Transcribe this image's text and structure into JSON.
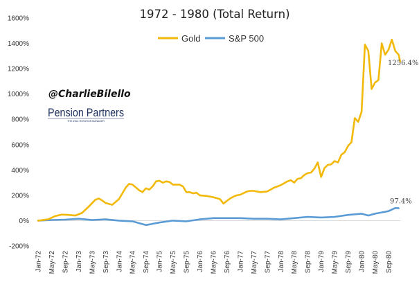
{
  "chart_data": {
    "type": "line",
    "title": "1972 - 1980 (Total Return)",
    "xlabel": "",
    "ylabel": "",
    "ylim": [
      -200,
      1600
    ],
    "y_ticks": [
      "-200%",
      "0%",
      "200%",
      "400%",
      "600%",
      "800%",
      "1000%",
      "1200%",
      "1400%",
      "1600%"
    ],
    "x_tick_labels": [
      "Jan-72",
      "May-72",
      "Sep-72",
      "Jan-73",
      "May-73",
      "Sep-73",
      "Jan-74",
      "May-74",
      "Sep-74",
      "Jan-75",
      "May-75",
      "Sep-75",
      "Jan-76",
      "May-76",
      "Sep-76",
      "Jan-77",
      "May-77",
      "Sep-77",
      "Jan-78",
      "May-78",
      "Sep-78",
      "Jan-79",
      "May-79",
      "Sep-79",
      "Jan-80",
      "May-80",
      "Sep-80"
    ],
    "x_range_months": [
      "Jan-72",
      "Dec-80"
    ],
    "grid": false,
    "legend_position": "top-center",
    "series": [
      {
        "name": "Gold",
        "color": "#f2b90a",
        "end_label": "1256.4%",
        "points": [
          [
            "Jan-72",
            0
          ],
          [
            "Apr-72",
            10
          ],
          [
            "Jun-72",
            35
          ],
          [
            "Aug-72",
            48
          ],
          [
            "Oct-72",
            45
          ],
          [
            "Dec-72",
            40
          ],
          [
            "Feb-73",
            60
          ],
          [
            "Apr-73",
            110
          ],
          [
            "Jun-73",
            165
          ],
          [
            "Jul-73",
            175
          ],
          [
            "Aug-73",
            160
          ],
          [
            "Sep-73",
            140
          ],
          [
            "Nov-73",
            125
          ],
          [
            "Jan-74",
            170
          ],
          [
            "Mar-74",
            260
          ],
          [
            "Apr-74",
            290
          ],
          [
            "May-74",
            285
          ],
          [
            "Jul-74",
            240
          ],
          [
            "Aug-74",
            225
          ],
          [
            "Sep-74",
            255
          ],
          [
            "Oct-74",
            245
          ],
          [
            "Nov-74",
            270
          ],
          [
            "Dec-74",
            310
          ],
          [
            "Jan-75",
            315
          ],
          [
            "Feb-75",
            300
          ],
          [
            "Mar-75",
            310
          ],
          [
            "Apr-75",
            305
          ],
          [
            "May-75",
            285
          ],
          [
            "Jul-75",
            285
          ],
          [
            "Aug-75",
            270
          ],
          [
            "Sep-75",
            225
          ],
          [
            "Oct-75",
            225
          ],
          [
            "Nov-75",
            215
          ],
          [
            "Dec-75",
            220
          ],
          [
            "Jan-76",
            200
          ],
          [
            "Mar-76",
            195
          ],
          [
            "May-76",
            185
          ],
          [
            "Jul-76",
            170
          ],
          [
            "Aug-76",
            135
          ],
          [
            "Sep-76",
            155
          ],
          [
            "Oct-76",
            175
          ],
          [
            "Nov-76",
            190
          ],
          [
            "Dec-76",
            200
          ],
          [
            "Jan-77",
            205
          ],
          [
            "Mar-77",
            230
          ],
          [
            "Apr-77",
            235
          ],
          [
            "May-77",
            235
          ],
          [
            "Jul-77",
            225
          ],
          [
            "Sep-77",
            230
          ],
          [
            "Oct-77",
            245
          ],
          [
            "Nov-77",
            260
          ],
          [
            "Dec-77",
            270
          ],
          [
            "Jan-78",
            280
          ],
          [
            "Mar-78",
            310
          ],
          [
            "Apr-78",
            320
          ],
          [
            "May-78",
            300
          ],
          [
            "Jun-78",
            330
          ],
          [
            "Jul-78",
            335
          ],
          [
            "Aug-78",
            360
          ],
          [
            "Sep-78",
            375
          ],
          [
            "Oct-78",
            380
          ],
          [
            "Nov-78",
            410
          ],
          [
            "Dec-78",
            460
          ],
          [
            "Jan-79",
            345
          ],
          [
            "Feb-79",
            415
          ],
          [
            "Mar-79",
            440
          ],
          [
            "Apr-79",
            445
          ],
          [
            "May-79",
            470
          ],
          [
            "Jun-79",
            460
          ],
          [
            "Jul-79",
            520
          ],
          [
            "Aug-79",
            540
          ],
          [
            "Sep-79",
            590
          ],
          [
            "Oct-79",
            620
          ],
          [
            "Nov-79",
            810
          ],
          [
            "Dec-79",
            780
          ],
          [
            "Jan-80",
            860
          ],
          [
            "Feb-80",
            1390
          ],
          [
            "Mar-80",
            1340
          ],
          [
            "Apr-80",
            1040
          ],
          [
            "May-80",
            1090
          ],
          [
            "Jun-80",
            1110
          ],
          [
            "Jul-80",
            1400
          ],
          [
            "Aug-80",
            1310
          ],
          [
            "Sep-80",
            1350
          ],
          [
            "Oct-80",
            1430
          ],
          [
            "Nov-80",
            1340
          ],
          [
            "Dec-80",
            1310
          ],
          [
            "Dec-80",
            1256.4
          ]
        ]
      },
      {
        "name": "S&P 500",
        "color": "#5b9bd5",
        "end_label": "97.4%",
        "points": [
          [
            "Jan-72",
            0
          ],
          [
            "May-72",
            5
          ],
          [
            "Sep-72",
            8
          ],
          [
            "Jan-73",
            15
          ],
          [
            "May-73",
            5
          ],
          [
            "Sep-73",
            10
          ],
          [
            "Jan-74",
            0
          ],
          [
            "May-74",
            -5
          ],
          [
            "Jul-74",
            -20
          ],
          [
            "Sep-74",
            -35
          ],
          [
            "Nov-74",
            -25
          ],
          [
            "Jan-75",
            -15
          ],
          [
            "May-75",
            0
          ],
          [
            "Sep-75",
            -5
          ],
          [
            "Jan-76",
            10
          ],
          [
            "May-76",
            20
          ],
          [
            "Sep-76",
            20
          ],
          [
            "Jan-77",
            20
          ],
          [
            "May-77",
            15
          ],
          [
            "Sep-77",
            15
          ],
          [
            "Jan-78",
            10
          ],
          [
            "May-78",
            20
          ],
          [
            "Sep-78",
            30
          ],
          [
            "Jan-79",
            25
          ],
          [
            "May-79",
            30
          ],
          [
            "Sep-79",
            45
          ],
          [
            "Jan-80",
            55
          ],
          [
            "Mar-80",
            40
          ],
          [
            "May-80",
            55
          ],
          [
            "Jul-80",
            65
          ],
          [
            "Sep-80",
            75
          ],
          [
            "Nov-80",
            100
          ],
          [
            "Dec-80",
            97.4
          ]
        ]
      }
    ]
  },
  "watermark": {
    "handle": "@CharlieBilello",
    "brand": "Pension Partners",
    "tagline": "THE ATAC ROTATION MANAGER"
  }
}
